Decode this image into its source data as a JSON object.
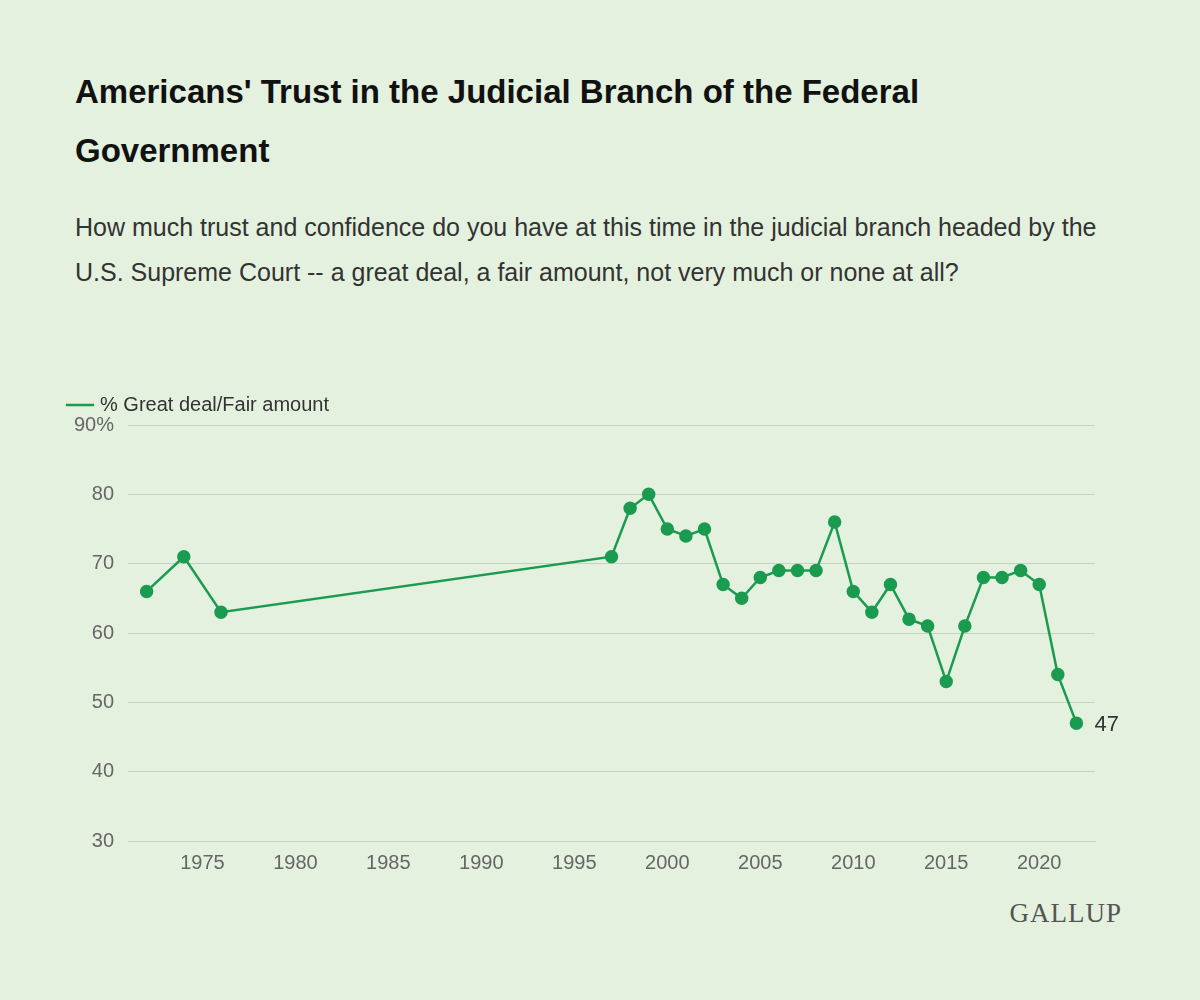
{
  "chart_data": {
    "type": "line",
    "title": "Americans' Trust in the Judicial Branch of the Federal Government",
    "subtitle": "How much trust and confidence do you have at this time in the judicial branch headed by the U.S. Supreme Court -- a great deal, a fair amount, not very much or none at all?",
    "x": [
      1972,
      1974,
      1976,
      1997,
      1998,
      1999,
      2000,
      2001,
      2002,
      2003,
      2004,
      2005,
      2006,
      2007,
      2008,
      2009,
      2010,
      2011,
      2012,
      2013,
      2014,
      2015,
      2016,
      2017,
      2018,
      2019,
      2020,
      2021,
      2022
    ],
    "series": [
      {
        "name": "% Great deal/Fair amount",
        "color": "#1a9b50",
        "marker": "circle",
        "values": [
          66,
          71,
          63,
          71,
          78,
          80,
          75,
          74,
          75,
          67,
          65,
          68,
          69,
          69,
          69,
          76,
          66,
          63,
          67,
          62,
          61,
          53,
          61,
          68,
          68,
          69,
          67,
          54,
          47
        ]
      }
    ],
    "xlim": [
      1971,
      2023
    ],
    "xticks": [
      1975,
      1980,
      1985,
      1990,
      1995,
      2000,
      2005,
      2010,
      2015,
      2020
    ],
    "ylim": [
      30,
      90
    ],
    "yticks": [
      30,
      40,
      50,
      60,
      70,
      80,
      {
        "value": 90,
        "label": "90%"
      }
    ],
    "grid": true,
    "legend": "top-left",
    "annotations": [
      {
        "x": 2022,
        "y": 47,
        "text": "47"
      }
    ],
    "source": "GALLUP"
  }
}
